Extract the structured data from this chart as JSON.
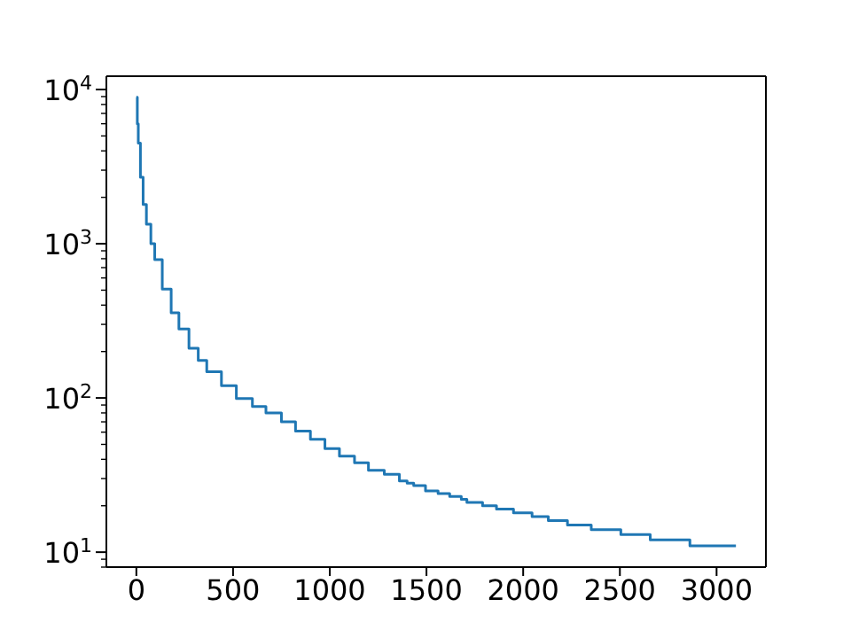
{
  "chart_data": {
    "type": "step",
    "x": [
      0,
      5,
      10,
      21,
      35,
      52,
      75,
      95,
      134,
      180,
      220,
      272,
      320,
      364,
      440,
      517,
      600,
      670,
      750,
      823,
      900,
      975,
      1050,
      1128,
      1200,
      1282,
      1360,
      1400,
      1434,
      1495,
      1560,
      1620,
      1680,
      1709,
      1790,
      1862,
      1950,
      2046,
      2130,
      2229,
      2352,
      2505,
      2657,
      2862,
      3100
    ],
    "series": [
      {
        "color": "#1f77b4",
        "values": [
          8900,
          6000,
          4500,
          2700,
          1800,
          1340,
          1000,
          790,
          508,
          357,
          280,
          210,
          175,
          148,
          120,
          99,
          88,
          80,
          70,
          61,
          54,
          47,
          42,
          38,
          34,
          32,
          29,
          28,
          27,
          25,
          24,
          23,
          22,
          21,
          20,
          19,
          18,
          17,
          16,
          15,
          14,
          13,
          12,
          11,
          11
        ]
      }
    ],
    "log": "y",
    "grid": false,
    "legend": false,
    "marker": "none",
    "line_style": "solid",
    "xlim": [
      -155,
      3255
    ],
    "xticks": [
      0,
      500,
      1000,
      1500,
      2000,
      2500,
      3000
    ],
    "ylim": [
      8,
      12200
    ],
    "yticks": [
      {
        "value": 8,
        "label": null
      },
      {
        "value": 9,
        "label": null
      },
      {
        "value": 10,
        "label": "10$^{1}$"
      },
      {
        "value": 20,
        "label": null
      },
      {
        "value": 30,
        "label": null
      },
      {
        "value": 40,
        "label": null
      },
      {
        "value": 50,
        "label": null
      },
      {
        "value": 60,
        "label": null
      },
      {
        "value": 70,
        "label": null
      },
      {
        "value": 80,
        "label": null
      },
      {
        "value": 90,
        "label": null
      },
      {
        "value": 100,
        "label": "10$^{2}$"
      },
      {
        "value": 200,
        "label": null
      },
      {
        "value": 300,
        "label": null
      },
      {
        "value": 400,
        "label": null
      },
      {
        "value": 500,
        "label": null
      },
      {
        "value": 600,
        "label": null
      },
      {
        "value": 700,
        "label": null
      },
      {
        "value": 800,
        "label": null
      },
      {
        "value": 900,
        "label": null
      },
      {
        "value": 1000,
        "label": "10$^{3}$"
      },
      {
        "value": 2000,
        "label": null
      },
      {
        "value": 3000,
        "label": null
      },
      {
        "value": 4000,
        "label": null
      },
      {
        "value": 5000,
        "label": null
      },
      {
        "value": 6000,
        "label": null
      },
      {
        "value": 7000,
        "label": null
      },
      {
        "value": 8000,
        "label": null
      },
      {
        "value": 9000,
        "label": null
      },
      {
        "value": 10000,
        "label": "10$^{4}$"
      }
    ]
  }
}
